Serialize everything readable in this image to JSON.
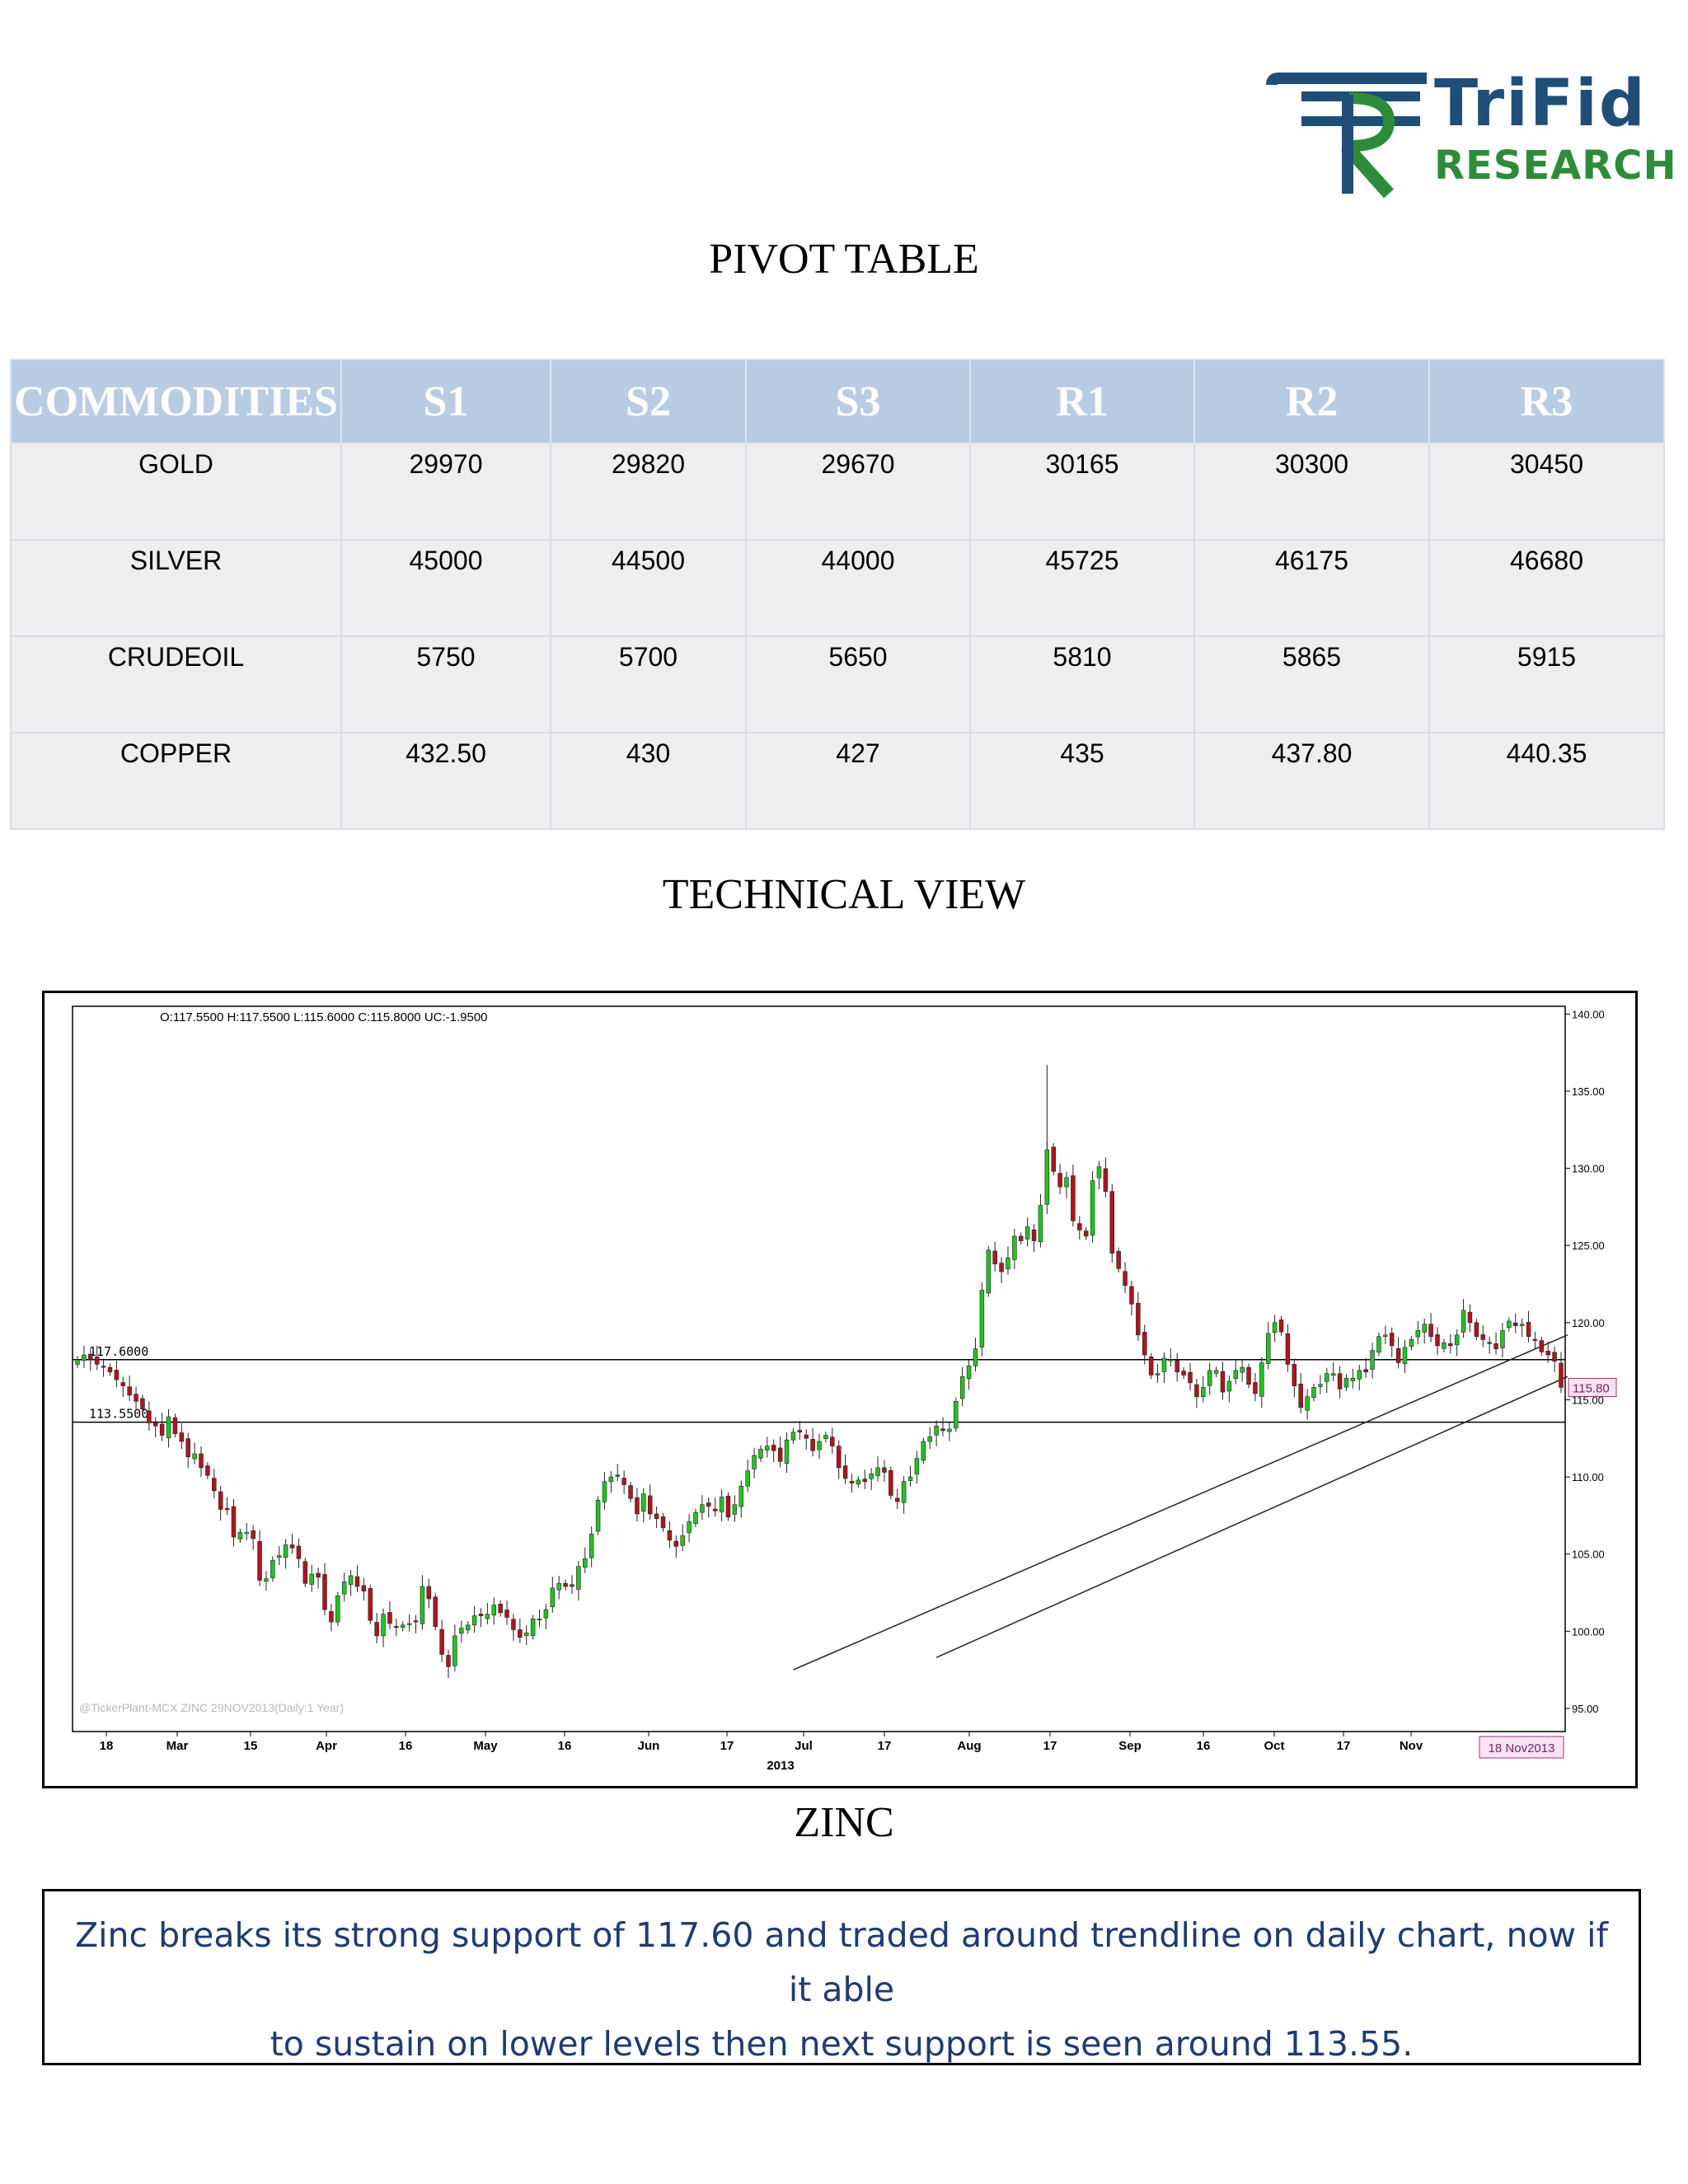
{
  "logo": {
    "name": "TriFid",
    "sub": "RESEARCH"
  },
  "pivot": {
    "title": "PIVOT TABLE",
    "headers": [
      "COMMODITIES",
      "S1",
      "S2",
      "S3",
      "R1",
      "R2",
      "R3"
    ],
    "rows": [
      [
        "GOLD",
        "29970",
        "29820",
        "29670",
        "30165",
        "30300",
        "30450"
      ],
      [
        "SILVER",
        "45000",
        "44500",
        "44000",
        "45725",
        "46175",
        "46680"
      ],
      [
        "CRUDEOIL",
        "5750",
        "5700",
        "5650",
        "5810",
        "5865",
        "5915"
      ],
      [
        "COPPER",
        "432.50",
        "430",
        "427",
        "435",
        "437.80",
        "440.35"
      ]
    ]
  },
  "technical": {
    "title": "TECHNICAL VIEW",
    "chart_caption": "ZINC"
  },
  "chart_data": {
    "type": "candlestick",
    "ohlc_label": "O:117.5500  H:117.5500  L:115.6000  C:115.8000  UC:-1.9500",
    "watermark": "@TickerPlant-MCX ZINC 29NOV2013(Daily:1 Year)",
    "ylim": [
      93.5,
      140.5
    ],
    "y_ticks": [
      "140.00",
      "135.00",
      "130.00",
      "125.00",
      "120.00",
      "115.00",
      "110.00",
      "105.00",
      "100.00",
      "95.00"
    ],
    "x_ticks": [
      "18",
      "Mar",
      "15",
      "Apr",
      "16",
      "May",
      "16",
      "Jun",
      "17",
      "Jul",
      "17",
      "Aug",
      "17",
      "Sep",
      "16",
      "Oct",
      "17",
      "Nov"
    ],
    "x_year": "2013",
    "last_price": "115.80",
    "last_date": "18 Nov2013",
    "horizontal_lines": [
      {
        "value": 117.6,
        "label": "117.6000"
      },
      {
        "value": 113.55,
        "label": "113.5500"
      }
    ],
    "trendlines": [
      {
        "from": [
          110,
          97.5
        ],
        "to": [
          229,
          119.2
        ]
      },
      {
        "from": [
          132,
          98.3
        ],
        "to": [
          229,
          116.5
        ]
      }
    ],
    "closes": [
      117.6,
      117.9,
      117.6,
      117.3,
      117.1,
      116.8,
      116.3,
      115.9,
      115.3,
      114.9,
      114.4,
      113.5,
      113.3,
      112.7,
      113.9,
      112.8,
      112.3,
      111.3,
      111.5,
      110.6,
      110.1,
      109.1,
      107.9,
      107.9,
      106.1,
      106.4,
      106.4,
      106.0,
      103.3,
      103.4,
      104.6,
      104.9,
      105.6,
      105.4,
      104.7,
      103.1,
      103.7,
      103.5,
      101.4,
      100.6,
      102.3,
      103.2,
      103.6,
      102.9,
      102.6,
      100.7,
      99.7,
      101.1,
      100.5,
      100.3,
      100.4,
      100.5,
      100.6,
      102.9,
      102.1,
      100.3,
      98.5,
      97.7,
      99.7,
      100.2,
      100.4,
      101.0,
      101.0,
      101.1,
      101.7,
      101.2,
      100.9,
      100.1,
      99.6,
      99.9,
      100.8,
      100.8,
      101.4,
      102.8,
      103.1,
      102.9,
      102.9,
      104.2,
      104.7,
      106.3,
      108.5,
      109.7,
      110.0,
      110.1,
      109.5,
      108.6,
      107.6,
      108.9,
      107.6,
      107.3,
      106.7,
      105.9,
      105.5,
      106.2,
      107.1,
      107.7,
      108.2,
      108.1,
      107.8,
      108.7,
      107.4,
      108.2,
      109.4,
      110.4,
      111.4,
      111.8,
      112.0,
      111.7,
      111.0,
      112.4,
      112.9,
      112.9,
      112.5,
      111.7,
      112.3,
      112.7,
      112.0,
      110.6,
      109.9,
      109.6,
      109.8,
      109.7,
      110.2,
      110.6,
      110.3,
      108.8,
      108.4,
      109.7,
      110.0,
      111.2,
      112.3,
      112.6,
      113.3,
      113.0,
      113.1,
      114.9,
      116.5,
      117.2,
      118.3,
      122.1,
      124.7,
      123.8,
      123.3,
      124.2,
      125.6,
      125.3,
      126.2,
      125.3,
      127.6,
      131.2,
      129.8,
      128.8,
      129.4,
      126.6,
      126.0,
      125.6,
      129.2,
      130.1,
      128.5,
      124.5,
      123.5,
      122.4,
      121.2,
      119.2,
      117.9,
      116.6,
      116.7,
      117.7,
      117.6,
      116.8,
      116.6,
      116.1,
      115.2,
      115.8,
      116.9,
      116.9,
      115.5,
      116.2,
      116.9,
      117.1,
      116.0,
      115.4,
      117.4,
      119.3,
      120.0,
      119.4,
      117.3,
      115.9,
      114.5,
      115.2,
      115.8,
      116.0,
      116.7,
      116.7,
      115.7,
      116.4,
      116.4,
      116.9,
      116.8,
      118.2,
      119.1,
      119.2,
      118.5,
      117.4,
      118.4,
      118.9,
      119.5,
      119.9,
      119.1,
      118.5,
      118.7,
      118.5,
      119.2,
      120.8,
      120.0,
      119.1,
      118.9,
      118.7,
      118.3,
      119.5,
      120.1,
      119.8,
      119.9,
      119.1,
      118.9,
      118.1,
      117.9,
      117.5,
      115.8
    ]
  },
  "caption": {
    "line1": "Zinc breaks its strong support of 117.60 and traded around trendline on daily chart, now if it able",
    "line2": "to sustain on lower levels then next support is seen around 113.55."
  }
}
